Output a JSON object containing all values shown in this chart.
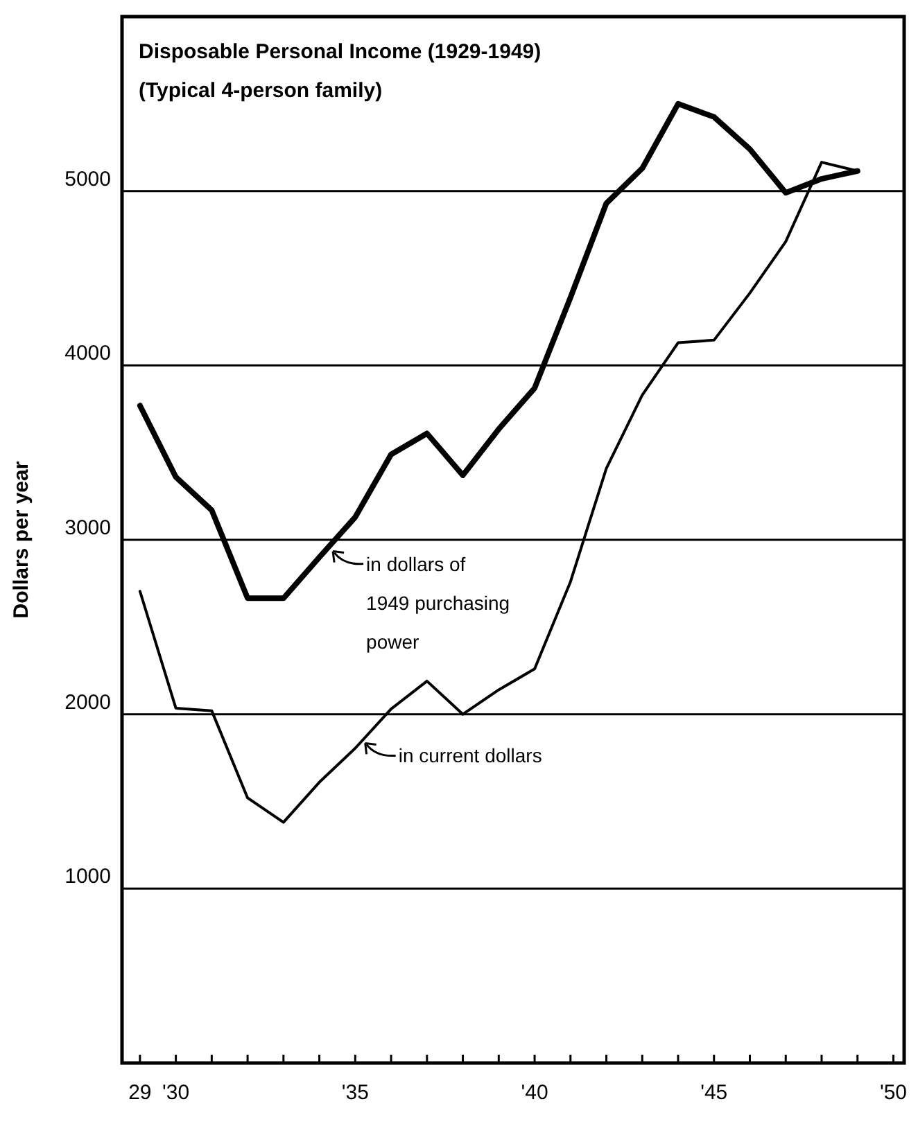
{
  "chart_data": {
    "type": "line",
    "title": "Disposable Personal Income (1929-1949)",
    "subtitle": "(Typical 4-person family)",
    "ylabel": "Dollars per year",
    "x": [
      1929,
      1930,
      1931,
      1932,
      1933,
      1934,
      1935,
      1936,
      1937,
      1938,
      1939,
      1940,
      1941,
      1942,
      1943,
      1944,
      1945,
      1946,
      1947,
      1948,
      1949
    ],
    "series": [
      {
        "color": "#000000",
        "values": [
          3770,
          3360,
          3170,
          2665,
          2665,
          2900,
          3130,
          3490,
          3610,
          3370,
          3635,
          3870,
          4390,
          4930,
          5130,
          5500,
          5425,
          5240,
          4990,
          5070,
          5115
        ]
      },
      {
        "color": "#000000",
        "values": [
          2705,
          2035,
          2020,
          1520,
          1380,
          1610,
          1805,
          2030,
          2190,
          2000,
          2140,
          2260,
          2760,
          3410,
          3830,
          4130,
          4145,
          4415,
          4710,
          5165,
          5115
        ]
      }
    ],
    "xlim": [
      1928.5,
      1950.3
    ],
    "xticks": [
      {
        "value": 1929,
        "label": "29"
      },
      {
        "value": 1930,
        "label": "'30"
      },
      {
        "value": 1931,
        "label": null
      },
      {
        "value": 1932,
        "label": null
      },
      {
        "value": 1933,
        "label": null
      },
      {
        "value": 1934,
        "label": null
      },
      {
        "value": 1935,
        "label": "'35"
      },
      {
        "value": 1936,
        "label": null
      },
      {
        "value": 1937,
        "label": null
      },
      {
        "value": 1938,
        "label": null
      },
      {
        "value": 1939,
        "label": null
      },
      {
        "value": 1940,
        "label": "'40"
      },
      {
        "value": 1941,
        "label": null
      },
      {
        "value": 1942,
        "label": null
      },
      {
        "value": 1943,
        "label": null
      },
      {
        "value": 1944,
        "label": null
      },
      {
        "value": 1945,
        "label": "'45"
      },
      {
        "value": 1946,
        "label": null
      },
      {
        "value": 1947,
        "label": null
      },
      {
        "value": 1948,
        "label": null
      },
      {
        "value": 1949,
        "label": null
      },
      {
        "value": 1950,
        "label": "'50"
      }
    ],
    "ylim": [
      0,
      6000
    ],
    "yticks": [
      1000,
      2000,
      3000,
      4000,
      5000
    ],
    "grid": "y",
    "annotations": [
      {
        "text": "in dollars of 1949 purchasing power",
        "x": 1934.3,
        "y": 2950
      },
      {
        "text": "in current dollars",
        "x": 1935.2,
        "y": 1850
      }
    ]
  }
}
